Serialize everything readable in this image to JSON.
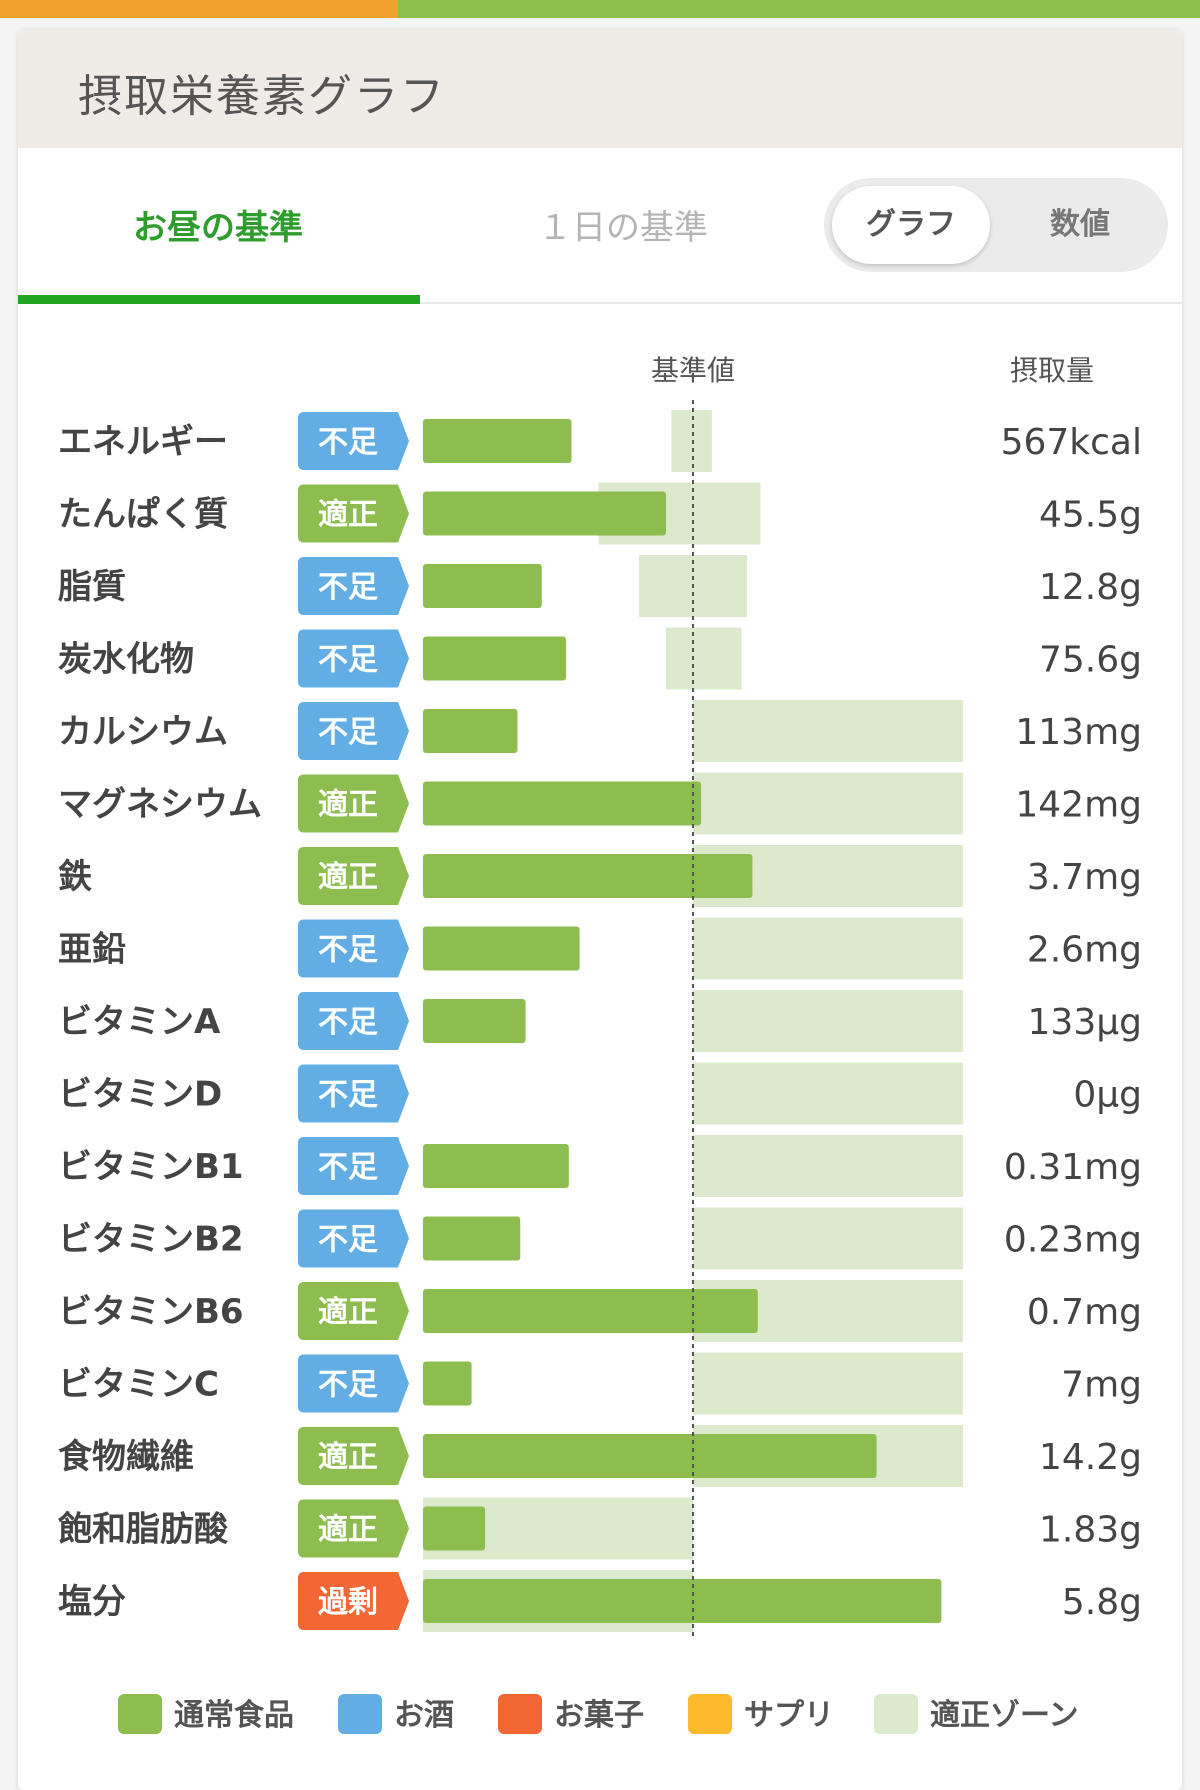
{
  "title": "摂取栄養素グラフ",
  "tabs": [
    {
      "label": "お昼の基準",
      "active": true
    },
    {
      "label": "１日の基準",
      "active": false
    }
  ],
  "view_toggle": {
    "selected": "グラフ",
    "other": "数値"
  },
  "colors": {
    "accent": "#22a322",
    "bar_normal_food": "#8dbd4f",
    "zone": "#dde9cc",
    "status_shortage": "#62aee4",
    "status_adequate": "#8dbd4f",
    "status_excess": "#f26734",
    "legend_alcohol": "#62aee4",
    "legend_snack": "#f26734",
    "legend_supplement": "#fbb92b"
  },
  "chart_data": {
    "type": "bar",
    "orientation": "horizontal",
    "reference_label": "基準値",
    "value_column_label": "摂取量",
    "reference_value": 1.0,
    "unit_note": "",
    "categories": [
      "エネルギー",
      "たんぱく質",
      "脂質",
      "炭水化物",
      "カルシウム",
      "マグネシウム",
      "鉄",
      "亜鉛",
      "ビタミンA",
      "ビタミンD",
      "ビタミンB1",
      "ビタミンB2",
      "ビタミンB6",
      "ビタミンC",
      "食物繊維",
      "飽和脂肪酸",
      "塩分"
    ],
    "status": [
      "不足",
      "適正",
      "不足",
      "不足",
      "不足",
      "適正",
      "適正",
      "不足",
      "不足",
      "不足",
      "不足",
      "不足",
      "適正",
      "不足",
      "適正",
      "適正",
      "過剰"
    ],
    "amount_labels": [
      "567kcal",
      "45.5g",
      "12.8g",
      "75.6g",
      "113mg",
      "142mg",
      "3.7mg",
      "2.6mg",
      "133μg",
      "0μg",
      "0.31mg",
      "0.23mg",
      "0.7mg",
      "7mg",
      "14.2g",
      "1.83g",
      "5.8g"
    ],
    "ratio_to_reference": [
      0.55,
      0.9,
      0.44,
      0.53,
      0.35,
      1.03,
      1.22,
      0.58,
      0.38,
      0.0,
      0.54,
      0.36,
      1.24,
      0.18,
      1.68,
      0.23,
      1.92
    ],
    "adequate_zone": [
      [
        0.92,
        1.07
      ],
      [
        0.65,
        1.25
      ],
      [
        0.8,
        1.2
      ],
      [
        0.9,
        1.18
      ],
      [
        1.0,
        2.0
      ],
      [
        1.0,
        2.0
      ],
      [
        1.0,
        2.0
      ],
      [
        1.0,
        2.0
      ],
      [
        1.0,
        2.0
      ],
      [
        1.0,
        2.0
      ],
      [
        1.0,
        2.0
      ],
      [
        1.0,
        2.0
      ],
      [
        1.0,
        2.0
      ],
      [
        1.0,
        2.0
      ],
      [
        1.0,
        2.0
      ],
      [
        0.0,
        1.0
      ],
      [
        0.0,
        1.0
      ]
    ],
    "xlim": [
      0,
      2.0
    ]
  },
  "legend": [
    {
      "label": "通常食品",
      "color": "#8dbd4f"
    },
    {
      "label": "お酒",
      "color": "#62aee4"
    },
    {
      "label": "お菓子",
      "color": "#f26734"
    },
    {
      "label": "サプリ",
      "color": "#fbb92b"
    },
    {
      "label": "適正ゾーン",
      "color": "#dde9cc"
    }
  ]
}
